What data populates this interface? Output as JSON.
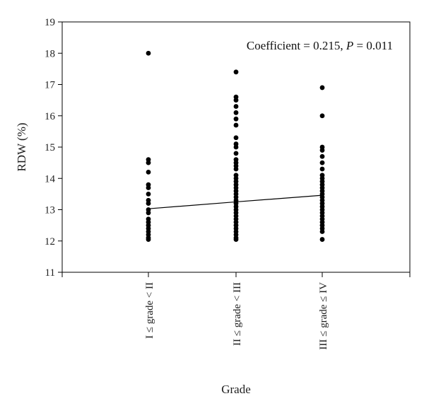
{
  "chart_data": {
    "type": "scatter",
    "title": "",
    "xlabel": "Grade",
    "ylabel": "RDW (%)",
    "ylim": [
      11,
      19
    ],
    "y_ticks": [
      11,
      12,
      13,
      14,
      15,
      16,
      17,
      18,
      19
    ],
    "categories": [
      "I ≤ grade < II",
      "II ≤ grade < III",
      "III ≤ grade ≤ IV"
    ],
    "annotation": {
      "prefix": "Coefficient = 0.215, ",
      "p_symbol": "P",
      "suffix": " = 0.011"
    },
    "series": [
      {
        "category": "I ≤ grade < II",
        "values": [
          18.0,
          14.6,
          14.5,
          14.2,
          13.8,
          13.7,
          13.5,
          13.3,
          13.2,
          13.0,
          12.9,
          12.7,
          12.6,
          12.5,
          12.4,
          12.3,
          12.2,
          12.1,
          12.05
        ]
      },
      {
        "category": "II ≤ grade < III",
        "values": [
          17.4,
          16.6,
          16.5,
          16.3,
          16.1,
          15.9,
          15.7,
          15.3,
          15.1,
          15.0,
          14.8,
          14.6,
          14.5,
          14.4,
          14.3,
          14.1,
          14.0,
          13.9,
          13.8,
          13.7,
          13.6,
          13.5,
          13.4,
          13.3,
          13.2,
          13.1,
          13.0,
          12.9,
          12.8,
          12.7,
          12.6,
          12.5,
          12.4,
          12.3,
          12.2,
          12.1,
          12.05
        ]
      },
      {
        "category": "III ≤ grade ≤ IV",
        "values": [
          16.9,
          16.0,
          15.0,
          14.9,
          14.7,
          14.5,
          14.3,
          14.1,
          14.0,
          13.9,
          13.8,
          13.7,
          13.6,
          13.5,
          13.4,
          13.3,
          13.2,
          13.1,
          13.0,
          12.9,
          12.8,
          12.7,
          12.6,
          12.5,
          12.4,
          12.3,
          12.05
        ]
      }
    ],
    "trend_line": [
      {
        "category": "I ≤ grade < II",
        "y": 13.03
      },
      {
        "category": "II ≤ grade < III",
        "y": 13.25
      },
      {
        "category": "III ≤ grade ≤ IV",
        "y": 13.46
      }
    ]
  }
}
